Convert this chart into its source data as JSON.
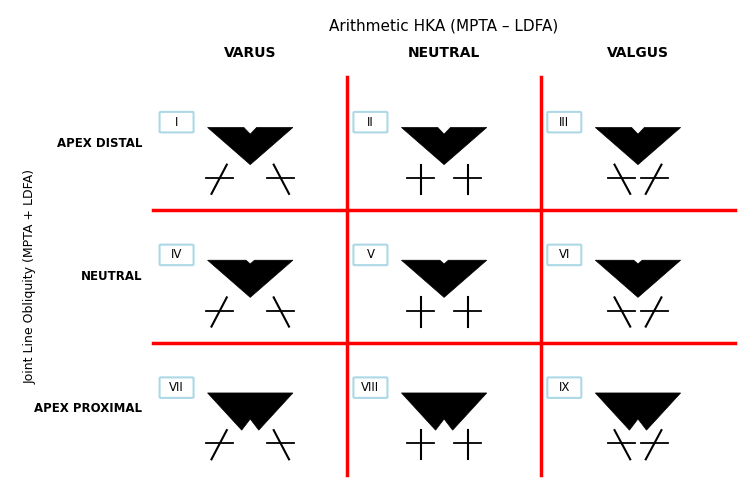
{
  "title_top": "Arithmetic HKA (MPTA – LDFA)",
  "ylabel": "Joint Line Obliquity (MPTA + LDFA)",
  "col_labels": [
    "VARUS",
    "NEUTRAL",
    "VALGUS"
  ],
  "row_labels": [
    "APEX DISTAL",
    "NEUTRAL",
    "APEX PROXIMAL"
  ],
  "cell_labels": [
    [
      "I",
      "II",
      "III"
    ],
    [
      "IV",
      "V",
      "VI"
    ],
    [
      "VII",
      "VIII",
      "IX"
    ]
  ],
  "red_line_color": "#FF0000",
  "grid_bg": "#FFFFFF",
  "label_box_color": "#ADD8E6",
  "triangle_color": "#000000",
  "line_color": "#000000",
  "figsize": [
    7.54,
    4.94
  ],
  "dpi": 100
}
